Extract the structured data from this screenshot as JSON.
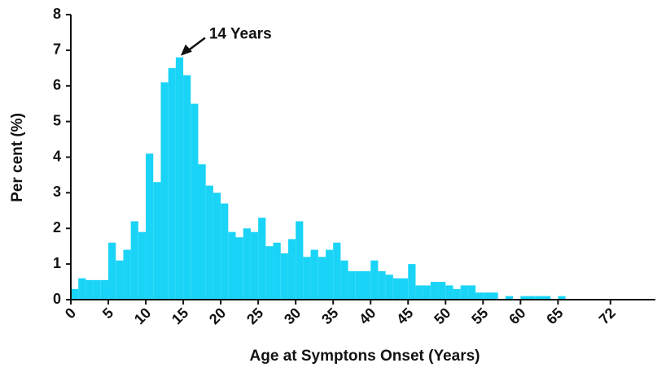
{
  "chart_data": {
    "type": "histogram",
    "bins": [
      0,
      1,
      2,
      3,
      4,
      5,
      6,
      7,
      8,
      9,
      10,
      11,
      12,
      13,
      14,
      15,
      16,
      17,
      18,
      19,
      20,
      21,
      22,
      23,
      24,
      25,
      26,
      27,
      28,
      29,
      30,
      31,
      32,
      33,
      34,
      35,
      36,
      37,
      38,
      39,
      40,
      41,
      42,
      43,
      44,
      45,
      46,
      47,
      48,
      49,
      50,
      51,
      52,
      53,
      54,
      55,
      56,
      57,
      58,
      59,
      60,
      61,
      62,
      63,
      64,
      65,
      66,
      67
    ],
    "values": [
      0.3,
      0.6,
      0.55,
      0.55,
      0.55,
      1.6,
      1.1,
      1.4,
      2.2,
      1.9,
      4.1,
      3.3,
      6.1,
      6.5,
      6.8,
      6.3,
      5.5,
      3.8,
      3.2,
      3.0,
      2.7,
      1.9,
      1.75,
      2.0,
      1.9,
      2.3,
      1.5,
      1.6,
      1.3,
      1.7,
      2.2,
      1.2,
      1.4,
      1.2,
      1.4,
      1.6,
      1.1,
      0.8,
      0.8,
      0.8,
      1.1,
      0.8,
      0.7,
      0.6,
      0.6,
      1.0,
      0.4,
      0.4,
      0.5,
      0.5,
      0.4,
      0.3,
      0.4,
      0.4,
      0.2,
      0.2,
      0.2,
      0,
      0.1,
      0,
      0.1,
      0.1,
      0.1,
      0.1,
      0,
      0.1,
      0
    ],
    "color": "#1ad4f7",
    "xlabel": "Age at Symptons Onset (Years)",
    "ylabel": "Per cent (%)",
    "annotation": "14 Years",
    "xlim": [
      0,
      78
    ],
    "xticks": [
      0,
      5,
      10,
      15,
      20,
      25,
      30,
      35,
      40,
      45,
      50,
      55,
      60,
      65,
      72
    ],
    "ylim": [
      0,
      8
    ],
    "yticks": [
      0,
      1,
      2,
      3,
      4,
      5,
      6,
      7,
      8
    ]
  }
}
